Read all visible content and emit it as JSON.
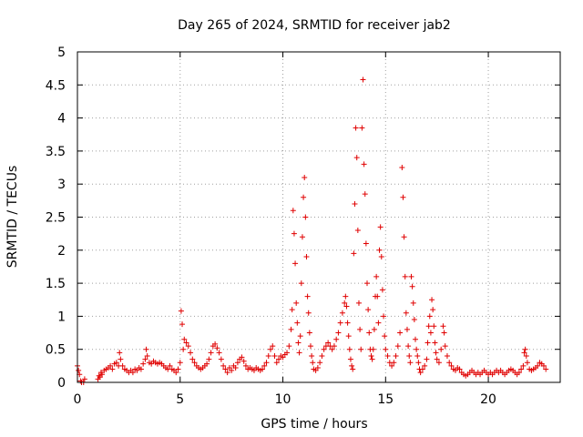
{
  "chart_data": {
    "type": "scatter",
    "title": "Day 265 of 2024, SRMTID for receiver jab2",
    "xlabel": "GPS time / hours",
    "ylabel": "SRMTID / TECUs",
    "xlim": [
      0,
      23.5
    ],
    "ylim": [
      0,
      5
    ],
    "xticks": [
      0,
      5,
      10,
      15,
      20
    ],
    "xtick_labels": [
      "0",
      "5",
      "10",
      "15",
      "20"
    ],
    "yticks": [
      0,
      0.5,
      1,
      1.5,
      2,
      2.5,
      3,
      3.5,
      4,
      4.5,
      5
    ],
    "ytick_labels": [
      "0",
      "0.5",
      "1",
      "1.5",
      "2",
      "2.5",
      "3",
      "3.5",
      "4",
      "4.5",
      "5"
    ],
    "grid": true,
    "marker": "+",
    "color": "#e00000",
    "series": [
      {
        "name": "jab2",
        "points": [
          [
            0.0,
            0.25
          ],
          [
            0.05,
            0.18
          ],
          [
            0.1,
            0.12
          ],
          [
            0.15,
            0.02
          ],
          [
            0.2,
            0.0
          ],
          [
            0.3,
            0.0
          ],
          [
            0.35,
            0.05
          ],
          [
            1.0,
            0.05
          ],
          [
            1.05,
            0.1
          ],
          [
            1.1,
            0.08
          ],
          [
            1.15,
            0.15
          ],
          [
            1.2,
            0.12
          ],
          [
            1.3,
            0.18
          ],
          [
            1.4,
            0.2
          ],
          [
            1.5,
            0.22
          ],
          [
            1.6,
            0.25
          ],
          [
            1.7,
            0.2
          ],
          [
            1.8,
            0.28
          ],
          [
            1.9,
            0.3
          ],
          [
            2.0,
            0.25
          ],
          [
            2.05,
            0.45
          ],
          [
            2.1,
            0.35
          ],
          [
            2.2,
            0.25
          ],
          [
            2.3,
            0.2
          ],
          [
            2.4,
            0.18
          ],
          [
            2.5,
            0.15
          ],
          [
            2.6,
            0.18
          ],
          [
            2.7,
            0.15
          ],
          [
            2.8,
            0.2
          ],
          [
            2.9,
            0.18
          ],
          [
            3.0,
            0.22
          ],
          [
            3.1,
            0.2
          ],
          [
            3.2,
            0.28
          ],
          [
            3.3,
            0.35
          ],
          [
            3.35,
            0.5
          ],
          [
            3.4,
            0.4
          ],
          [
            3.5,
            0.3
          ],
          [
            3.6,
            0.28
          ],
          [
            3.7,
            0.32
          ],
          [
            3.8,
            0.3
          ],
          [
            3.9,
            0.28
          ],
          [
            4.0,
            0.3
          ],
          [
            4.1,
            0.28
          ],
          [
            4.2,
            0.25
          ],
          [
            4.3,
            0.22
          ],
          [
            4.4,
            0.2
          ],
          [
            4.5,
            0.25
          ],
          [
            4.6,
            0.2
          ],
          [
            4.7,
            0.18
          ],
          [
            4.8,
            0.15
          ],
          [
            4.9,
            0.2
          ],
          [
            5.0,
            0.3
          ],
          [
            5.05,
            1.08
          ],
          [
            5.1,
            0.88
          ],
          [
            5.15,
            0.5
          ],
          [
            5.2,
            0.65
          ],
          [
            5.3,
            0.6
          ],
          [
            5.4,
            0.55
          ],
          [
            5.5,
            0.45
          ],
          [
            5.6,
            0.35
          ],
          [
            5.7,
            0.3
          ],
          [
            5.8,
            0.25
          ],
          [
            5.9,
            0.22
          ],
          [
            6.0,
            0.2
          ],
          [
            6.1,
            0.22
          ],
          [
            6.2,
            0.25
          ],
          [
            6.3,
            0.28
          ],
          [
            6.4,
            0.35
          ],
          [
            6.5,
            0.45
          ],
          [
            6.6,
            0.55
          ],
          [
            6.7,
            0.58
          ],
          [
            6.8,
            0.52
          ],
          [
            6.9,
            0.45
          ],
          [
            7.0,
            0.35
          ],
          [
            7.1,
            0.25
          ],
          [
            7.2,
            0.2
          ],
          [
            7.3,
            0.15
          ],
          [
            7.4,
            0.22
          ],
          [
            7.5,
            0.18
          ],
          [
            7.6,
            0.25
          ],
          [
            7.7,
            0.22
          ],
          [
            7.8,
            0.3
          ],
          [
            7.9,
            0.35
          ],
          [
            8.0,
            0.38
          ],
          [
            8.1,
            0.32
          ],
          [
            8.2,
            0.25
          ],
          [
            8.3,
            0.2
          ],
          [
            8.4,
            0.22
          ],
          [
            8.5,
            0.2
          ],
          [
            8.6,
            0.18
          ],
          [
            8.7,
            0.22
          ],
          [
            8.8,
            0.2
          ],
          [
            8.9,
            0.18
          ],
          [
            9.0,
            0.2
          ],
          [
            9.1,
            0.25
          ],
          [
            9.2,
            0.3
          ],
          [
            9.3,
            0.4
          ],
          [
            9.4,
            0.5
          ],
          [
            9.5,
            0.55
          ],
          [
            9.6,
            0.4
          ],
          [
            9.7,
            0.3
          ],
          [
            9.8,
            0.35
          ],
          [
            9.9,
            0.4
          ],
          [
            10.0,
            0.38
          ],
          [
            10.1,
            0.42
          ],
          [
            10.2,
            0.45
          ],
          [
            10.3,
            0.55
          ],
          [
            10.4,
            0.8
          ],
          [
            10.45,
            1.1
          ],
          [
            10.5,
            2.6
          ],
          [
            10.55,
            2.25
          ],
          [
            10.6,
            1.8
          ],
          [
            10.65,
            1.2
          ],
          [
            10.7,
            0.9
          ],
          [
            10.75,
            0.6
          ],
          [
            10.8,
            0.45
          ],
          [
            10.85,
            0.7
          ],
          [
            10.9,
            1.5
          ],
          [
            10.95,
            2.2
          ],
          [
            11.0,
            2.8
          ],
          [
            11.05,
            3.1
          ],
          [
            11.1,
            2.5
          ],
          [
            11.15,
            1.9
          ],
          [
            11.2,
            1.3
          ],
          [
            11.25,
            1.05
          ],
          [
            11.3,
            0.75
          ],
          [
            11.35,
            0.55
          ],
          [
            11.4,
            0.4
          ],
          [
            11.45,
            0.3
          ],
          [
            11.5,
            0.2
          ],
          [
            11.6,
            0.18
          ],
          [
            11.7,
            0.22
          ],
          [
            11.8,
            0.3
          ],
          [
            11.9,
            0.4
          ],
          [
            12.0,
            0.5
          ],
          [
            12.1,
            0.55
          ],
          [
            12.2,
            0.6
          ],
          [
            12.3,
            0.55
          ],
          [
            12.4,
            0.5
          ],
          [
            12.5,
            0.55
          ],
          [
            12.6,
            0.65
          ],
          [
            12.7,
            0.75
          ],
          [
            12.8,
            0.9
          ],
          [
            12.9,
            1.05
          ],
          [
            13.0,
            1.2
          ],
          [
            13.05,
            1.3
          ],
          [
            13.1,
            1.15
          ],
          [
            13.15,
            0.9
          ],
          [
            13.2,
            0.7
          ],
          [
            13.25,
            0.5
          ],
          [
            13.3,
            0.35
          ],
          [
            13.35,
            0.25
          ],
          [
            13.4,
            0.2
          ],
          [
            13.45,
            1.95
          ],
          [
            13.5,
            2.7
          ],
          [
            13.55,
            3.85
          ],
          [
            13.6,
            3.4
          ],
          [
            13.65,
            2.3
          ],
          [
            13.7,
            1.2
          ],
          [
            13.75,
            0.8
          ],
          [
            13.8,
            0.5
          ],
          [
            13.85,
            3.85
          ],
          [
            13.9,
            4.58
          ],
          [
            13.95,
            3.3
          ],
          [
            14.0,
            2.85
          ],
          [
            14.05,
            2.1
          ],
          [
            14.1,
            1.5
          ],
          [
            14.15,
            1.1
          ],
          [
            14.2,
            0.75
          ],
          [
            14.25,
            0.5
          ],
          [
            14.3,
            0.4
          ],
          [
            14.35,
            0.35
          ],
          [
            14.4,
            0.5
          ],
          [
            14.45,
            0.8
          ],
          [
            14.5,
            1.3
          ],
          [
            14.55,
            1.6
          ],
          [
            14.6,
            1.3
          ],
          [
            14.65,
            0.9
          ],
          [
            14.7,
            2.0
          ],
          [
            14.75,
            2.35
          ],
          [
            14.8,
            1.9
          ],
          [
            14.85,
            1.4
          ],
          [
            14.9,
            1.0
          ],
          [
            14.95,
            0.7
          ],
          [
            15.0,
            0.5
          ],
          [
            15.1,
            0.4
          ],
          [
            15.2,
            0.3
          ],
          [
            15.3,
            0.25
          ],
          [
            15.4,
            0.3
          ],
          [
            15.5,
            0.4
          ],
          [
            15.6,
            0.55
          ],
          [
            15.7,
            0.75
          ],
          [
            15.8,
            3.25
          ],
          [
            15.85,
            2.8
          ],
          [
            15.9,
            2.2
          ],
          [
            15.95,
            1.6
          ],
          [
            16.0,
            1.05
          ],
          [
            16.05,
            0.8
          ],
          [
            16.1,
            0.55
          ],
          [
            16.15,
            0.4
          ],
          [
            16.2,
            0.3
          ],
          [
            16.25,
            1.6
          ],
          [
            16.3,
            1.45
          ],
          [
            16.35,
            1.2
          ],
          [
            16.4,
            0.95
          ],
          [
            16.45,
            0.65
          ],
          [
            16.5,
            0.5
          ],
          [
            16.55,
            0.4
          ],
          [
            16.6,
            0.3
          ],
          [
            16.65,
            0.2
          ],
          [
            16.7,
            0.15
          ],
          [
            16.8,
            0.2
          ],
          [
            16.9,
            0.25
          ],
          [
            17.0,
            0.35
          ],
          [
            17.05,
            0.6
          ],
          [
            17.1,
            0.85
          ],
          [
            17.15,
            1.0
          ],
          [
            17.2,
            0.75
          ],
          [
            17.25,
            1.25
          ],
          [
            17.3,
            1.1
          ],
          [
            17.35,
            0.85
          ],
          [
            17.4,
            0.6
          ],
          [
            17.45,
            0.45
          ],
          [
            17.5,
            0.35
          ],
          [
            17.6,
            0.3
          ],
          [
            17.7,
            0.5
          ],
          [
            17.8,
            0.85
          ],
          [
            17.85,
            0.75
          ],
          [
            17.9,
            0.55
          ],
          [
            18.0,
            0.4
          ],
          [
            18.1,
            0.3
          ],
          [
            18.2,
            0.25
          ],
          [
            18.3,
            0.2
          ],
          [
            18.4,
            0.18
          ],
          [
            18.5,
            0.22
          ],
          [
            18.6,
            0.2
          ],
          [
            18.7,
            0.15
          ],
          [
            18.8,
            0.12
          ],
          [
            18.9,
            0.1
          ],
          [
            19.0,
            0.12
          ],
          [
            19.1,
            0.15
          ],
          [
            19.2,
            0.18
          ],
          [
            19.3,
            0.15
          ],
          [
            19.4,
            0.12
          ],
          [
            19.5,
            0.15
          ],
          [
            19.6,
            0.12
          ],
          [
            19.7,
            0.15
          ],
          [
            19.8,
            0.18
          ],
          [
            19.9,
            0.15
          ],
          [
            20.0,
            0.12
          ],
          [
            20.1,
            0.15
          ],
          [
            20.2,
            0.12
          ],
          [
            20.3,
            0.15
          ],
          [
            20.4,
            0.18
          ],
          [
            20.5,
            0.15
          ],
          [
            20.6,
            0.18
          ],
          [
            20.7,
            0.15
          ],
          [
            20.8,
            0.12
          ],
          [
            20.9,
            0.15
          ],
          [
            21.0,
            0.18
          ],
          [
            21.1,
            0.2
          ],
          [
            21.2,
            0.18
          ],
          [
            21.3,
            0.15
          ],
          [
            21.4,
            0.12
          ],
          [
            21.5,
            0.15
          ],
          [
            21.6,
            0.2
          ],
          [
            21.7,
            0.25
          ],
          [
            21.75,
            0.45
          ],
          [
            21.8,
            0.5
          ],
          [
            21.85,
            0.4
          ],
          [
            21.9,
            0.3
          ],
          [
            22.0,
            0.2
          ],
          [
            22.1,
            0.18
          ],
          [
            22.2,
            0.2
          ],
          [
            22.3,
            0.22
          ],
          [
            22.4,
            0.25
          ],
          [
            22.5,
            0.3
          ],
          [
            22.6,
            0.28
          ],
          [
            22.7,
            0.25
          ],
          [
            22.8,
            0.2
          ]
        ]
      }
    ]
  }
}
